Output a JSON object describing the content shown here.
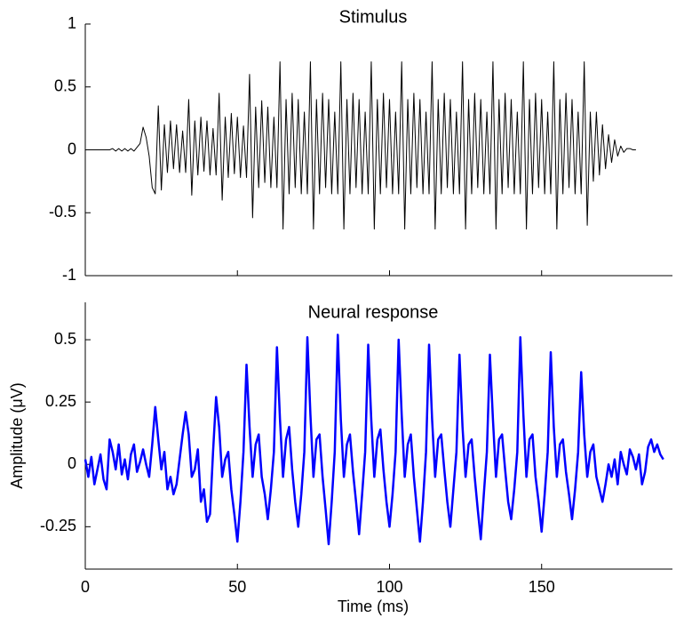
{
  "chart_data": [
    {
      "type": "line",
      "title": "Stimulus",
      "x": [
        0,
        1,
        2,
        3,
        4,
        5,
        6,
        7,
        8,
        9,
        10,
        11,
        12,
        13,
        14,
        15,
        16,
        17,
        18,
        19,
        20,
        21,
        22,
        23,
        24,
        25,
        26,
        27,
        28,
        29,
        30,
        31,
        32,
        33,
        34,
        35,
        36,
        37,
        38,
        39,
        40,
        41,
        42,
        43,
        44,
        45,
        46,
        47,
        48,
        49,
        50,
        51,
        52,
        53,
        54,
        55,
        56,
        57,
        58,
        59,
        60,
        61,
        62,
        63,
        64,
        65,
        66,
        67,
        68,
        69,
        70,
        71,
        72,
        73,
        74,
        75,
        76,
        77,
        78,
        79,
        80,
        81,
        82,
        83,
        84,
        85,
        86,
        87,
        88,
        89,
        90,
        91,
        92,
        93,
        94,
        95,
        96,
        97,
        98,
        99,
        100,
        101,
        102,
        103,
        104,
        105,
        106,
        107,
        108,
        109,
        110,
        111,
        112,
        113,
        114,
        115,
        116,
        117,
        118,
        119,
        120,
        121,
        122,
        123,
        124,
        125,
        126,
        127,
        128,
        129,
        130,
        131,
        132,
        133,
        134,
        135,
        136,
        137,
        138,
        139,
        140,
        141,
        142,
        143,
        144,
        145,
        146,
        147,
        148,
        149,
        150,
        151,
        152,
        153,
        154,
        155,
        156,
        157,
        158,
        159,
        160,
        161,
        162,
        163,
        164,
        165,
        166,
        167,
        168,
        169,
        170,
        171,
        172,
        173,
        174,
        175,
        176,
        177,
        178,
        179,
        180,
        181
      ],
      "series": [
        {
          "color": "#000000",
          "values": [
            0,
            0,
            0,
            0,
            0,
            0,
            0,
            0,
            0,
            0.01,
            -0.01,
            0.01,
            -0.01,
            0.01,
            -0.01,
            0.01,
            -0.01,
            0.02,
            0.05,
            0.18,
            0.1,
            -0.05,
            -0.3,
            -0.35,
            0.35,
            -0.32,
            0.2,
            -0.18,
            0.23,
            -0.15,
            0.2,
            -0.18,
            0.15,
            -0.18,
            0.4,
            -0.36,
            0.23,
            -0.2,
            0.26,
            -0.17,
            0.23,
            -0.2,
            0.17,
            -0.2,
            0.45,
            -0.4,
            0.26,
            -0.22,
            0.29,
            -0.19,
            0.26,
            -0.22,
            0.19,
            -0.22,
            0.6,
            -0.54,
            0.34,
            -0.3,
            0.39,
            -0.26,
            0.34,
            -0.3,
            0.26,
            -0.3,
            0.7,
            -0.63,
            0.4,
            -0.35,
            0.45,
            -0.3,
            0.4,
            -0.35,
            0.3,
            -0.35,
            0.7,
            -0.63,
            0.4,
            -0.35,
            0.45,
            -0.3,
            0.4,
            -0.35,
            0.3,
            -0.35,
            0.7,
            -0.63,
            0.4,
            -0.35,
            0.45,
            -0.3,
            0.4,
            -0.35,
            0.3,
            -0.35,
            0.7,
            -0.63,
            0.4,
            -0.35,
            0.45,
            -0.3,
            0.4,
            -0.35,
            0.3,
            -0.35,
            0.7,
            -0.63,
            0.4,
            -0.35,
            0.45,
            -0.3,
            0.4,
            -0.35,
            0.3,
            -0.35,
            0.7,
            -0.63,
            0.4,
            -0.35,
            0.45,
            -0.3,
            0.4,
            -0.35,
            0.3,
            -0.35,
            0.7,
            -0.63,
            0.4,
            -0.35,
            0.45,
            -0.3,
            0.4,
            -0.35,
            0.3,
            -0.35,
            0.7,
            -0.63,
            0.4,
            -0.35,
            0.45,
            -0.3,
            0.4,
            -0.35,
            0.3,
            -0.35,
            0.7,
            -0.63,
            0.4,
            -0.35,
            0.45,
            -0.3,
            0.4,
            -0.35,
            0.3,
            -0.35,
            0.7,
            -0.63,
            0.4,
            -0.35,
            0.45,
            -0.3,
            0.4,
            -0.35,
            0.3,
            -0.35,
            0.7,
            -0.6,
            0.3,
            -0.25,
            0.3,
            -0.2,
            0.2,
            -0.15,
            0.12,
            -0.1,
            0.08,
            -0.05,
            0.03,
            -0.02,
            0.01,
            0.01,
            0,
            0
          ]
        }
      ],
      "xlim": [
        0,
        193
      ],
      "xticks": [
        50,
        100,
        150
      ],
      "xtick_labels": false,
      "ylim": [
        -1,
        1
      ],
      "yticks": [
        -1,
        -0.5,
        0,
        0.5,
        1
      ]
    },
    {
      "type": "line",
      "title": "Neural response",
      "xlabel": "Time (ms)",
      "ylabel": "Amplitude (μV)",
      "x": [
        0,
        1,
        2,
        3,
        4,
        5,
        6,
        7,
        8,
        9,
        10,
        11,
        12,
        13,
        14,
        15,
        16,
        17,
        18,
        19,
        20,
        21,
        22,
        23,
        24,
        25,
        26,
        27,
        28,
        29,
        30,
        31,
        32,
        33,
        34,
        35,
        36,
        37,
        38,
        39,
        40,
        41,
        42,
        43,
        44,
        45,
        46,
        47,
        48,
        49,
        50,
        51,
        52,
        53,
        54,
        55,
        56,
        57,
        58,
        59,
        60,
        61,
        62,
        63,
        64,
        65,
        66,
        67,
        68,
        69,
        70,
        71,
        72,
        73,
        74,
        75,
        76,
        77,
        78,
        79,
        80,
        81,
        82,
        83,
        84,
        85,
        86,
        87,
        88,
        89,
        90,
        91,
        92,
        93,
        94,
        95,
        96,
        97,
        98,
        99,
        100,
        101,
        102,
        103,
        104,
        105,
        106,
        107,
        108,
        109,
        110,
        111,
        112,
        113,
        114,
        115,
        116,
        117,
        118,
        119,
        120,
        121,
        122,
        123,
        124,
        125,
        126,
        127,
        128,
        129,
        130,
        131,
        132,
        133,
        134,
        135,
        136,
        137,
        138,
        139,
        140,
        141,
        142,
        143,
        144,
        145,
        146,
        147,
        148,
        149,
        150,
        151,
        152,
        153,
        154,
        155,
        156,
        157,
        158,
        159,
        160,
        161,
        162,
        163,
        164,
        165,
        166,
        167,
        168,
        169,
        170,
        171,
        172,
        173,
        174,
        175,
        176,
        177,
        178,
        179,
        180,
        181,
        182,
        183,
        184,
        185,
        186,
        187,
        188,
        189,
        190
      ],
      "series": [
        {
          "color": "#0000ff",
          "values": [
            0.02,
            -0.05,
            0.03,
            -0.08,
            -0.02,
            0.04,
            -0.06,
            -0.1,
            0.1,
            0.05,
            -0.02,
            0.08,
            -0.04,
            0.02,
            -0.06,
            0.04,
            0.08,
            -0.03,
            0.01,
            0.06,
            0.0,
            -0.05,
            0.08,
            0.23,
            0.1,
            -0.02,
            0.05,
            -0.1,
            -0.05,
            -0.12,
            -0.08,
            0.02,
            0.12,
            0.21,
            0.12,
            -0.05,
            -0.02,
            0.06,
            -0.15,
            -0.1,
            -0.23,
            -0.2,
            0.05,
            0.27,
            0.15,
            -0.05,
            0.02,
            0.05,
            -0.1,
            -0.2,
            -0.31,
            -0.15,
            0.05,
            0.4,
            0.15,
            -0.05,
            0.08,
            0.12,
            -0.05,
            -0.12,
            -0.22,
            -0.1,
            0.05,
            0.47,
            0.18,
            -0.05,
            0.1,
            0.15,
            -0.02,
            -0.15,
            -0.25,
            -0.12,
            0.05,
            0.51,
            0.2,
            -0.05,
            0.1,
            0.12,
            -0.05,
            -0.18,
            -0.32,
            -0.15,
            0.05,
            0.52,
            0.18,
            -0.05,
            0.08,
            0.12,
            -0.03,
            -0.15,
            -0.28,
            -0.12,
            0.05,
            0.48,
            0.18,
            -0.05,
            0.1,
            0.14,
            -0.02,
            -0.15,
            -0.25,
            -0.12,
            0.05,
            0.5,
            0.2,
            -0.05,
            0.08,
            0.12,
            -0.05,
            -0.18,
            -0.31,
            -0.15,
            0.05,
            0.48,
            0.18,
            -0.05,
            0.1,
            0.12,
            -0.02,
            -0.15,
            -0.25,
            -0.1,
            0.05,
            0.44,
            0.15,
            -0.05,
            0.08,
            0.1,
            -0.05,
            -0.18,
            -0.3,
            -0.12,
            0.05,
            0.44,
            0.18,
            -0.05,
            0.1,
            0.12,
            -0.02,
            -0.15,
            -0.22,
            -0.1,
            0.05,
            0.51,
            0.2,
            -0.05,
            0.1,
            0.12,
            -0.05,
            -0.15,
            -0.27,
            -0.12,
            0.05,
            0.45,
            0.15,
            -0.05,
            0.08,
            0.1,
            -0.03,
            -0.12,
            -0.22,
            -0.1,
            0.05,
            0.37,
            0.12,
            -0.05,
            0.05,
            0.08,
            -0.05,
            -0.1,
            -0.15,
            -0.08,
            0.0,
            -0.05,
            0.02,
            -0.08,
            0.05,
            0.0,
            -0.04,
            0.06,
            0.03,
            -0.02,
            0.04,
            -0.08,
            -0.03,
            0.07,
            0.1,
            0.05,
            0.08,
            0.04,
            0.02
          ]
        }
      ],
      "xlim": [
        0,
        193
      ],
      "xticks": [
        0,
        50,
        100,
        150
      ],
      "xtick_labels": true,
      "ylim": [
        -0.42,
        0.65
      ],
      "yticks": [
        -0.25,
        0,
        0.25,
        0.5
      ]
    }
  ]
}
